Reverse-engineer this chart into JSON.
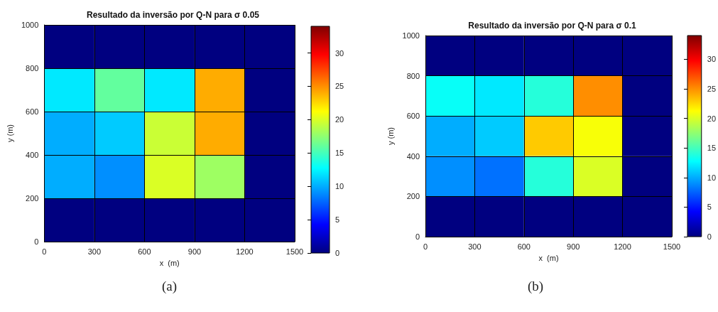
{
  "chart_data": [
    {
      "type": "heatmap",
      "title": "Resultado da inversão por Q-N para σ 0.05",
      "xlabel": "x  (m)",
      "ylabel": "y (m)",
      "annotations": [
        "(a)"
      ],
      "xlim": [
        0,
        1500
      ],
      "xticks": [
        0,
        300,
        600,
        900,
        1200,
        1500
      ],
      "ylim": [
        0,
        1000
      ],
      "yticks": [
        0,
        200,
        400,
        600,
        800,
        1000
      ],
      "grid": true,
      "cells": [
        [
          0,
          0,
          0,
          0,
          0
        ],
        [
          12,
          16,
          12,
          24,
          0
        ],
        [
          10,
          11,
          19.5,
          24,
          0
        ],
        [
          10,
          9,
          20,
          18,
          0
        ],
        [
          0,
          0,
          0,
          0,
          0
        ]
      ],
      "clim": [
        0,
        34
      ],
      "cticks": [
        0,
        5,
        10,
        15,
        20,
        25,
        30
      ]
    },
    {
      "type": "heatmap",
      "title": "Resultado da inversão por Q-N para σ 0.1",
      "xlabel": "x  (m)",
      "ylabel": "y (m)",
      "annotations": [
        "(b)"
      ],
      "xlim": [
        0,
        1500
      ],
      "xticks": [
        0,
        300,
        600,
        900,
        1200,
        1500
      ],
      "ylim": [
        0,
        1000
      ],
      "yticks": [
        0,
        200,
        400,
        600,
        800,
        1000
      ],
      "grid": true,
      "cells": [
        [
          0,
          0,
          0,
          0,
          0
        ],
        [
          13,
          12,
          14,
          25,
          0
        ],
        [
          10,
          11,
          23,
          21,
          0
        ],
        [
          9,
          8,
          14,
          20,
          0
        ],
        [
          0,
          0,
          0,
          0,
          0
        ]
      ],
      "clim": [
        0,
        34
      ],
      "cticks": [
        0,
        5,
        10,
        15,
        20,
        25,
        30
      ]
    }
  ]
}
